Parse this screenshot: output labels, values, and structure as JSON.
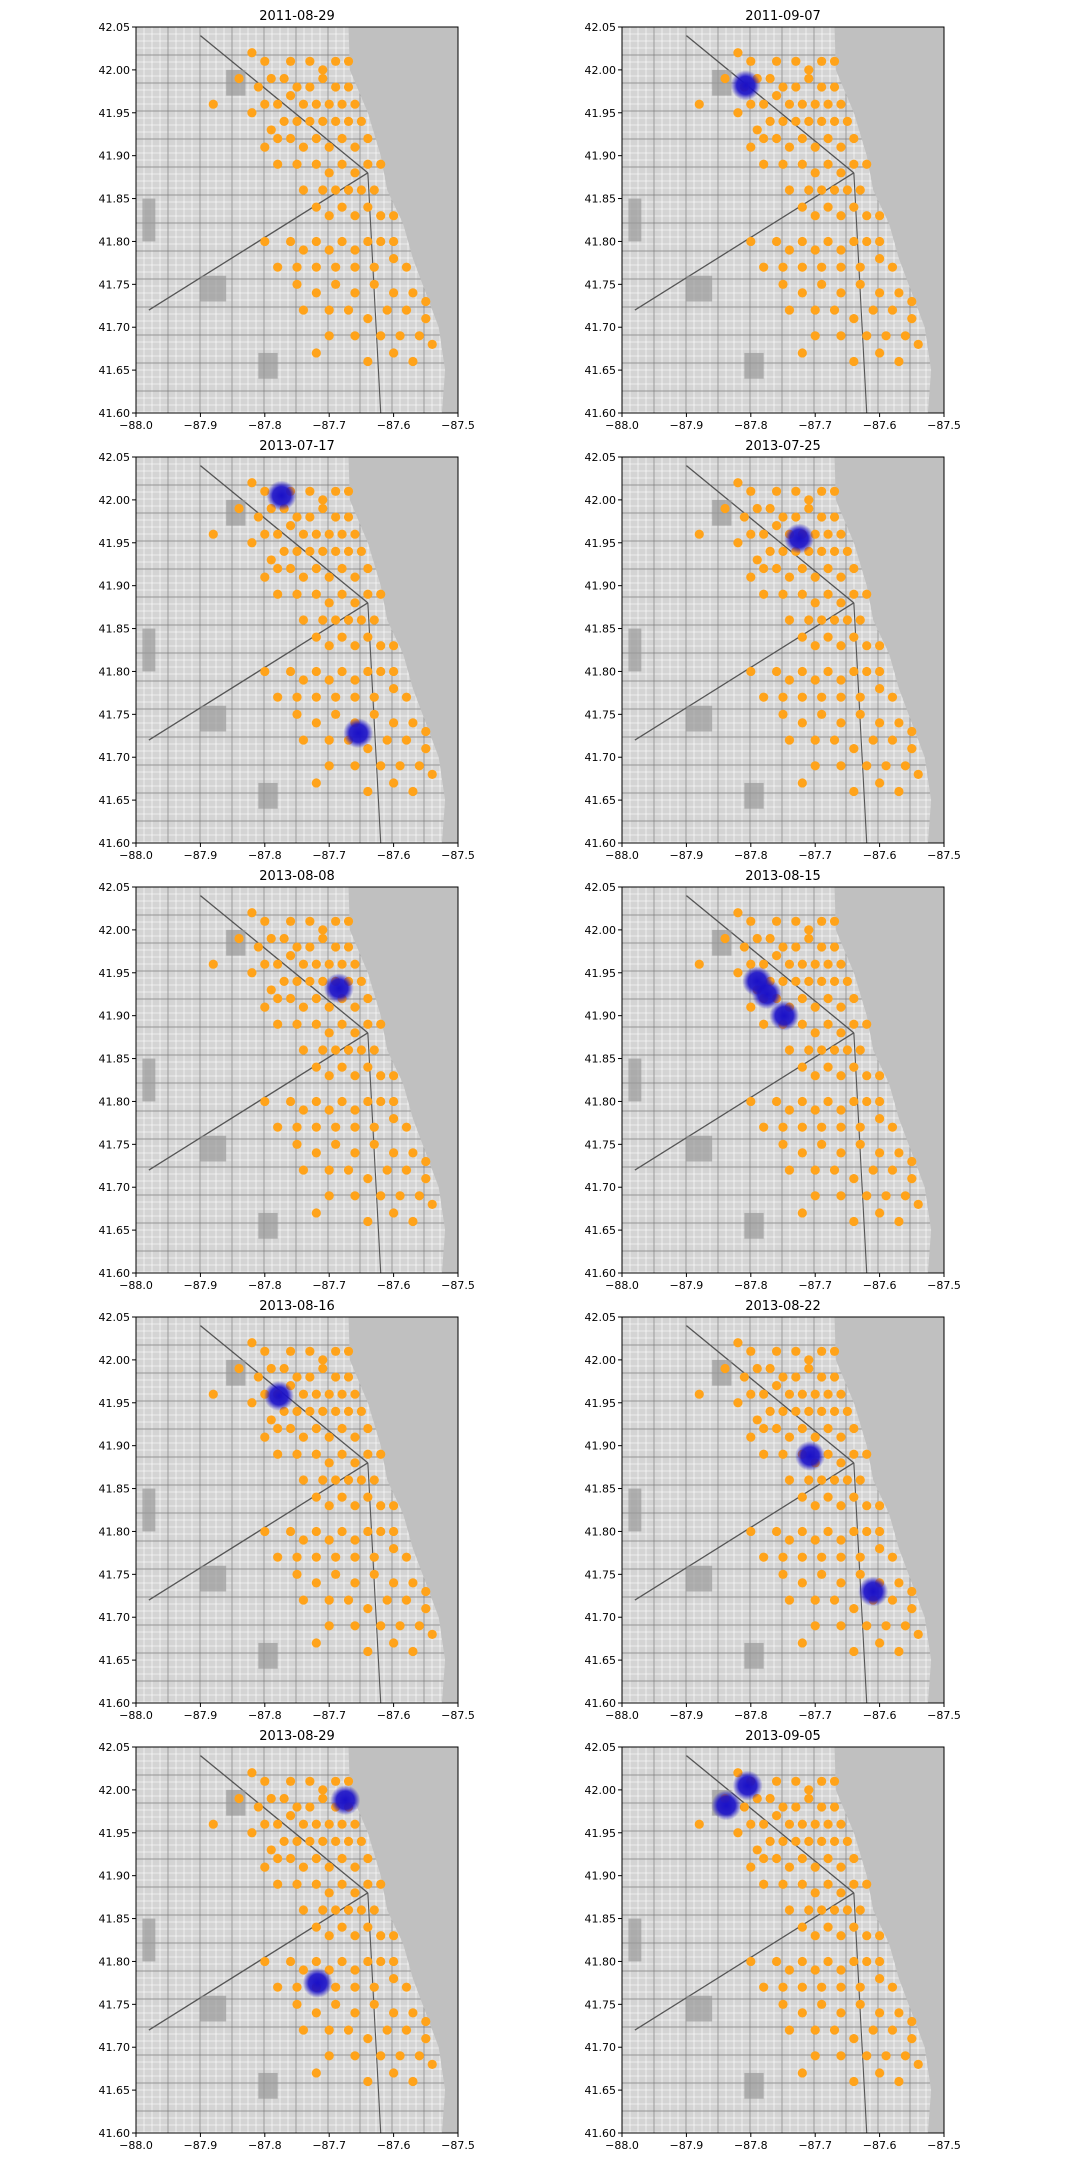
{
  "chart_data": [
    {
      "type": "scatter",
      "title": "2011-08-29",
      "xlim": [
        -88.0,
        -87.5
      ],
      "ylim": [
        41.6,
        42.05
      ],
      "xticks": [
        "−88.0",
        "−87.9",
        "−87.8",
        "−87.7",
        "−87.6",
        "−87.5"
      ],
      "yticks": [
        "41.60",
        "41.65",
        "41.70",
        "41.75",
        "41.80",
        "41.85",
        "41.90",
        "41.95",
        "42.00",
        "42.05"
      ],
      "hotspots": []
    },
    {
      "type": "scatter",
      "title": "2011-09-07",
      "xlim": [
        -88.0,
        -87.5
      ],
      "ylim": [
        41.6,
        42.05
      ],
      "xticks": [
        "−88.0",
        "−87.9",
        "−87.8",
        "−87.7",
        "−87.6",
        "−87.5"
      ],
      "yticks": [
        "41.60",
        "41.65",
        "41.70",
        "41.75",
        "41.80",
        "41.85",
        "41.90",
        "41.95",
        "42.00",
        "42.05"
      ],
      "hotspots": [
        {
          "x": -87.808,
          "y": 41.982
        }
      ]
    },
    {
      "type": "scatter",
      "title": "2013-07-17",
      "xlim": [
        -88.0,
        -87.5
      ],
      "ylim": [
        41.6,
        42.05
      ],
      "xticks": [
        "−88.0",
        "−87.9",
        "−87.8",
        "−87.7",
        "−87.6",
        "−87.5"
      ],
      "yticks": [
        "41.60",
        "41.65",
        "41.70",
        "41.75",
        "41.80",
        "41.85",
        "41.90",
        "41.95",
        "42.00",
        "42.05"
      ],
      "hotspots": [
        {
          "x": -87.774,
          "y": 42.005
        },
        {
          "x": -87.655,
          "y": 41.728
        }
      ]
    },
    {
      "type": "scatter",
      "title": "2013-07-25",
      "xlim": [
        -88.0,
        -87.5
      ],
      "ylim": [
        41.6,
        42.05
      ],
      "xticks": [
        "−88.0",
        "−87.9",
        "−87.8",
        "−87.7",
        "−87.6",
        "−87.5"
      ],
      "yticks": [
        "41.60",
        "41.65",
        "41.70",
        "41.75",
        "41.80",
        "41.85",
        "41.90",
        "41.95",
        "42.00",
        "42.05"
      ],
      "hotspots": [
        {
          "x": -87.725,
          "y": 41.955
        }
      ]
    },
    {
      "type": "scatter",
      "title": "2013-08-08",
      "xlim": [
        -88.0,
        -87.5
      ],
      "ylim": [
        41.6,
        42.05
      ],
      "xticks": [
        "−88.0",
        "−87.9",
        "−87.8",
        "−87.7",
        "−87.6",
        "−87.5"
      ],
      "yticks": [
        "41.60",
        "41.65",
        "41.70",
        "41.75",
        "41.80",
        "41.85",
        "41.90",
        "41.95",
        "42.00",
        "42.05"
      ],
      "hotspots": [
        {
          "x": -87.685,
          "y": 41.932
        }
      ]
    },
    {
      "type": "scatter",
      "title": "2013-08-15",
      "xlim": [
        -88.0,
        -87.5
      ],
      "ylim": [
        41.6,
        42.05
      ],
      "xticks": [
        "−88.0",
        "−87.9",
        "−87.8",
        "−87.7",
        "−87.6",
        "−87.5"
      ],
      "yticks": [
        "41.60",
        "41.65",
        "41.70",
        "41.75",
        "41.80",
        "41.85",
        "41.90",
        "41.95",
        "42.00",
        "42.05"
      ],
      "hotspots": [
        {
          "x": -87.79,
          "y": 41.94
        },
        {
          "x": -87.775,
          "y": 41.925
        },
        {
          "x": -87.748,
          "y": 41.9
        }
      ]
    },
    {
      "type": "scatter",
      "title": "2013-08-16",
      "xlim": [
        -88.0,
        -87.5
      ],
      "ylim": [
        41.6,
        42.05
      ],
      "xticks": [
        "−88.0",
        "−87.9",
        "−87.8",
        "−87.7",
        "−87.6",
        "−87.5"
      ],
      "yticks": [
        "41.60",
        "41.65",
        "41.70",
        "41.75",
        "41.80",
        "41.85",
        "41.90",
        "41.95",
        "42.00",
        "42.05"
      ],
      "hotspots": [
        {
          "x": -87.778,
          "y": 41.958
        }
      ]
    },
    {
      "type": "scatter",
      "title": "2013-08-22",
      "xlim": [
        -88.0,
        -87.5
      ],
      "ylim": [
        41.6,
        42.05
      ],
      "xticks": [
        "−88.0",
        "−87.9",
        "−87.8",
        "−87.7",
        "−87.6",
        "−87.5"
      ],
      "yticks": [
        "41.60",
        "41.65",
        "41.70",
        "41.75",
        "41.80",
        "41.85",
        "41.90",
        "41.95",
        "42.00",
        "42.05"
      ],
      "hotspots": [
        {
          "x": -87.708,
          "y": 41.888
        },
        {
          "x": -87.61,
          "y": 41.73
        }
      ]
    },
    {
      "type": "scatter",
      "title": "2013-08-29",
      "xlim": [
        -88.0,
        -87.5
      ],
      "ylim": [
        41.6,
        42.05
      ],
      "xticks": [
        "−88.0",
        "−87.9",
        "−87.8",
        "−87.7",
        "−87.6",
        "−87.5"
      ],
      "yticks": [
        "41.60",
        "41.65",
        "41.70",
        "41.75",
        "41.80",
        "41.85",
        "41.90",
        "41.95",
        "42.00",
        "42.05"
      ],
      "hotspots": [
        {
          "x": -87.675,
          "y": 41.988
        },
        {
          "x": -87.718,
          "y": 41.775
        }
      ]
    },
    {
      "type": "scatter",
      "title": "2013-09-05",
      "xlim": [
        -88.0,
        -87.5
      ],
      "ylim": [
        41.6,
        42.05
      ],
      "xticks": [
        "−88.0",
        "−87.9",
        "−87.8",
        "−87.7",
        "−87.6",
        "−87.5"
      ],
      "yticks": [
        "41.60",
        "41.65",
        "41.70",
        "41.75",
        "41.80",
        "41.85",
        "41.90",
        "41.95",
        "42.00",
        "42.05"
      ],
      "hotspots": [
        {
          "x": -87.805,
          "y": 42.005
        },
        {
          "x": -87.838,
          "y": 41.982
        }
      ]
    }
  ],
  "stations": [
    [
      -87.82,
      42.02
    ],
    [
      -87.8,
      42.01
    ],
    [
      -87.76,
      42.01
    ],
    [
      -87.73,
      42.01
    ],
    [
      -87.71,
      42.0
    ],
    [
      -87.69,
      42.01
    ],
    [
      -87.67,
      42.01
    ],
    [
      -87.88,
      41.96
    ],
    [
      -87.84,
      41.99
    ],
    [
      -87.81,
      41.98
    ],
    [
      -87.79,
      41.99
    ],
    [
      -87.77,
      41.99
    ],
    [
      -87.75,
      41.98
    ],
    [
      -87.73,
      41.98
    ],
    [
      -87.71,
      41.99
    ],
    [
      -87.69,
      41.98
    ],
    [
      -87.67,
      41.98
    ],
    [
      -87.82,
      41.95
    ],
    [
      -87.8,
      41.96
    ],
    [
      -87.78,
      41.96
    ],
    [
      -87.76,
      41.97
    ],
    [
      -87.74,
      41.96
    ],
    [
      -87.72,
      41.96
    ],
    [
      -87.7,
      41.96
    ],
    [
      -87.68,
      41.96
    ],
    [
      -87.66,
      41.96
    ],
    [
      -87.79,
      41.93
    ],
    [
      -87.77,
      41.94
    ],
    [
      -87.75,
      41.94
    ],
    [
      -87.73,
      41.94
    ],
    [
      -87.71,
      41.94
    ],
    [
      -87.69,
      41.94
    ],
    [
      -87.67,
      41.94
    ],
    [
      -87.65,
      41.94
    ],
    [
      -87.8,
      41.91
    ],
    [
      -87.78,
      41.92
    ],
    [
      -87.76,
      41.92
    ],
    [
      -87.74,
      41.91
    ],
    [
      -87.72,
      41.92
    ],
    [
      -87.7,
      41.91
    ],
    [
      -87.68,
      41.92
    ],
    [
      -87.66,
      41.91
    ],
    [
      -87.64,
      41.92
    ],
    [
      -87.78,
      41.89
    ],
    [
      -87.75,
      41.89
    ],
    [
      -87.72,
      41.89
    ],
    [
      -87.7,
      41.88
    ],
    [
      -87.68,
      41.89
    ],
    [
      -87.66,
      41.88
    ],
    [
      -87.64,
      41.89
    ],
    [
      -87.62,
      41.89
    ],
    [
      -87.74,
      41.86
    ],
    [
      -87.71,
      41.86
    ],
    [
      -87.69,
      41.86
    ],
    [
      -87.67,
      41.86
    ],
    [
      -87.65,
      41.86
    ],
    [
      -87.63,
      41.86
    ],
    [
      -87.72,
      41.84
    ],
    [
      -87.7,
      41.83
    ],
    [
      -87.68,
      41.84
    ],
    [
      -87.66,
      41.83
    ],
    [
      -87.64,
      41.84
    ],
    [
      -87.62,
      41.83
    ],
    [
      -87.6,
      41.83
    ],
    [
      -87.8,
      41.8
    ],
    [
      -87.76,
      41.8
    ],
    [
      -87.74,
      41.79
    ],
    [
      -87.72,
      41.8
    ],
    [
      -87.7,
      41.79
    ],
    [
      -87.68,
      41.8
    ],
    [
      -87.66,
      41.79
    ],
    [
      -87.64,
      41.8
    ],
    [
      -87.62,
      41.8
    ],
    [
      -87.6,
      41.8
    ],
    [
      -87.78,
      41.77
    ],
    [
      -87.75,
      41.77
    ],
    [
      -87.72,
      41.77
    ],
    [
      -87.69,
      41.77
    ],
    [
      -87.66,
      41.77
    ],
    [
      -87.63,
      41.77
    ],
    [
      -87.6,
      41.78
    ],
    [
      -87.58,
      41.77
    ],
    [
      -87.75,
      41.75
    ],
    [
      -87.72,
      41.74
    ],
    [
      -87.69,
      41.75
    ],
    [
      -87.66,
      41.74
    ],
    [
      -87.63,
      41.75
    ],
    [
      -87.6,
      41.74
    ],
    [
      -87.57,
      41.74
    ],
    [
      -87.55,
      41.73
    ],
    [
      -87.74,
      41.72
    ],
    [
      -87.7,
      41.72
    ],
    [
      -87.67,
      41.72
    ],
    [
      -87.64,
      41.71
    ],
    [
      -87.61,
      41.72
    ],
    [
      -87.58,
      41.72
    ],
    [
      -87.55,
      41.71
    ],
    [
      -87.7,
      41.69
    ],
    [
      -87.66,
      41.69
    ],
    [
      -87.62,
      41.69
    ],
    [
      -87.59,
      41.69
    ],
    [
      -87.56,
      41.69
    ],
    [
      -87.72,
      41.67
    ],
    [
      -87.64,
      41.66
    ],
    [
      -87.6,
      41.67
    ],
    [
      -87.57,
      41.66
    ],
    [
      -87.54,
      41.68
    ]
  ],
  "colors": {
    "station": "#ffa31a",
    "hotspot": "#1a10c8",
    "map_bg": "#d4d4d4",
    "lake": "#c0c0c0"
  }
}
